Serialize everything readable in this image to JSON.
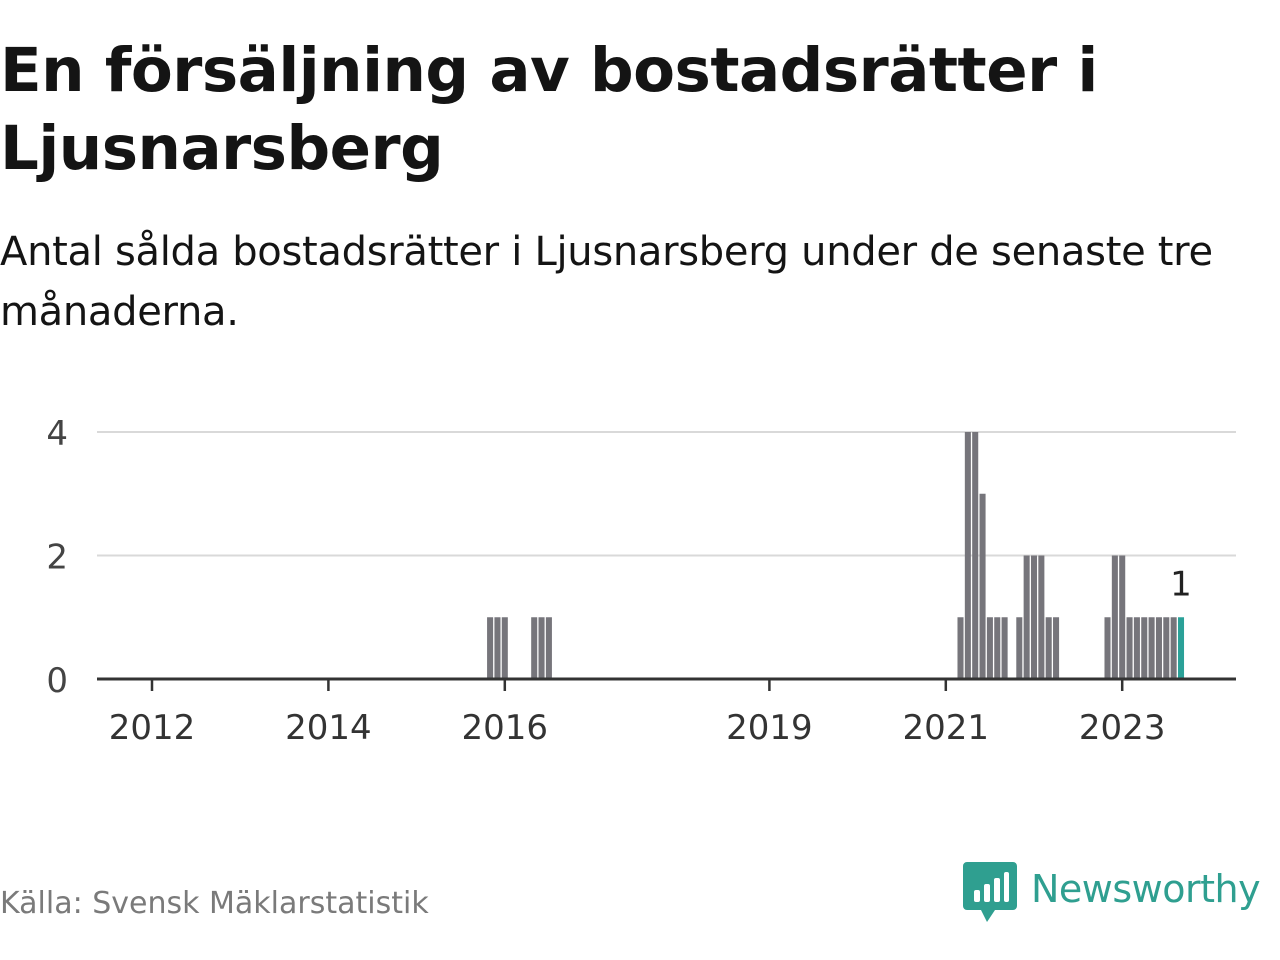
{
  "header": {
    "title": "En försäljning av bostadsrätter i Ljusnarsberg",
    "subtitle": "Antal sålda bostadsrätter i Ljusnarsberg under de senaste tre månaderna."
  },
  "footer": {
    "source": "Källa: Svensk Mäklarstatistik",
    "brand": "Newsworthy"
  },
  "colors": {
    "bar": "#76757b",
    "highlight": "#2aa198",
    "gridline": "#d9d9d9",
    "axis": "#333333",
    "brand": "#2f9f90"
  },
  "icons": {
    "brand_logo": "newsworthy-logo-icon"
  },
  "chart_data": {
    "type": "bar",
    "title": "En försäljning av bostadsrätter i Ljusnarsberg",
    "subtitle": "Antal sålda bostadsrätter i Ljusnarsberg under de senaste tre månaderna.",
    "xlabel": "",
    "ylabel": "",
    "ylim": [
      0,
      4
    ],
    "y_ticks": [
      0,
      2,
      4
    ],
    "grid": true,
    "x_domain": [
      "2011-09",
      "2024-04"
    ],
    "x_ticks": [
      "2012",
      "2014",
      "2016",
      "2019",
      "2021",
      "2023"
    ],
    "x_tick_dates": [
      "2012-01",
      "2014-01",
      "2016-01",
      "2019-01",
      "2021-01",
      "2023-01"
    ],
    "highlight_label": "1",
    "series": [
      {
        "name": "Antal sålda bostadsrätter",
        "points": [
          {
            "month": "2015-11",
            "value": 1
          },
          {
            "month": "2015-12",
            "value": 1
          },
          {
            "month": "2016-01",
            "value": 1
          },
          {
            "month": "2016-05",
            "value": 1
          },
          {
            "month": "2016-06",
            "value": 1
          },
          {
            "month": "2016-07",
            "value": 1
          },
          {
            "month": "2021-03",
            "value": 1
          },
          {
            "month": "2021-04",
            "value": 4
          },
          {
            "month": "2021-05",
            "value": 4
          },
          {
            "month": "2021-06",
            "value": 3
          },
          {
            "month": "2021-07",
            "value": 1
          },
          {
            "month": "2021-08",
            "value": 1
          },
          {
            "month": "2021-09",
            "value": 1
          },
          {
            "month": "2021-11",
            "value": 1
          },
          {
            "month": "2021-12",
            "value": 2
          },
          {
            "month": "2022-01",
            "value": 2
          },
          {
            "month": "2022-02",
            "value": 2
          },
          {
            "month": "2022-03",
            "value": 1
          },
          {
            "month": "2022-04",
            "value": 1
          },
          {
            "month": "2022-11",
            "value": 1
          },
          {
            "month": "2022-12",
            "value": 2
          },
          {
            "month": "2023-01",
            "value": 2
          },
          {
            "month": "2023-02",
            "value": 1
          },
          {
            "month": "2023-03",
            "value": 1
          },
          {
            "month": "2023-04",
            "value": 1
          },
          {
            "month": "2023-05",
            "value": 1
          },
          {
            "month": "2023-06",
            "value": 1
          },
          {
            "month": "2023-07",
            "value": 1
          },
          {
            "month": "2023-08",
            "value": 1
          },
          {
            "month": "2023-09",
            "value": 1,
            "highlight": true
          }
        ]
      }
    ]
  }
}
